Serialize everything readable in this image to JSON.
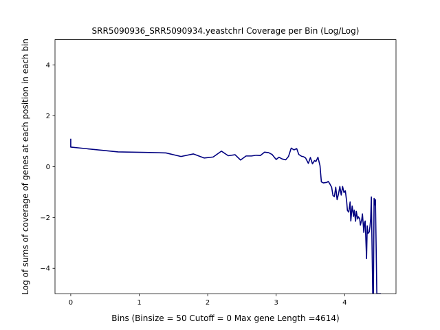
{
  "chart_data": {
    "type": "line",
    "title": "SRR5090936_SRR5090934.yeastchrI Coverage per Bin (Log/Log)",
    "xlabel": "Bins  (Binsize = 50 Cutoff = 0 Max gene Length =4614)",
    "ylabel": "Log of sums of coverage of genes at each position in each bin",
    "xlim": [
      -0.23,
      4.75
    ],
    "ylim": [
      -5,
      5
    ],
    "xticks": [
      0,
      1,
      2,
      3,
      4
    ],
    "yticks": [
      -4,
      -2,
      0,
      2,
      4
    ],
    "grid": false,
    "line_color": "#000080",
    "series": [
      {
        "x": [
          0,
          0,
          0.69,
          1.1,
          1.39,
          1.61,
          1.79,
          1.95,
          2.08,
          2.2,
          2.3,
          2.4,
          2.48,
          2.56,
          2.64,
          2.71,
          2.77,
          2.83,
          2.89,
          2.94,
          3.0,
          3.04,
          3.09,
          3.14,
          3.18,
          3.22,
          3.26,
          3.3,
          3.33,
          3.37,
          3.4,
          3.43,
          3.47,
          3.5,
          3.53,
          3.56,
          3.58,
          3.61,
          3.64,
          3.66,
          3.69,
          3.71,
          3.74,
          3.76,
          3.78,
          3.81,
          3.83,
          3.85,
          3.87,
          3.89,
          3.91,
          3.93,
          3.95,
          3.97,
          3.99,
          4.01,
          4.03,
          4.04,
          4.06,
          4.08,
          4.09,
          4.11,
          4.13,
          4.14,
          4.16,
          4.17,
          4.19,
          4.2,
          4.22,
          4.23,
          4.25,
          4.26,
          4.28,
          4.29,
          4.3,
          4.32,
          4.33,
          4.34,
          4.36,
          4.37,
          4.38,
          4.39,
          4.41,
          4.42,
          4.43,
          4.44,
          4.45,
          4.47,
          4.48,
          4.49,
          4.5,
          4.51,
          4.52,
          4.53
        ],
        "values": [
          1.1,
          0.77,
          0.58,
          0.56,
          0.54,
          0.4,
          0.5,
          0.34,
          0.38,
          0.61,
          0.43,
          0.47,
          0.26,
          0.42,
          0.42,
          0.45,
          0.44,
          0.57,
          0.55,
          0.48,
          0.28,
          0.37,
          0.3,
          0.27,
          0.4,
          0.73,
          0.66,
          0.71,
          0.48,
          0.41,
          0.39,
          0.34,
          0.13,
          0.36,
          0.11,
          0.24,
          0.2,
          0.37,
          0.04,
          -0.6,
          -0.64,
          -0.63,
          -0.62,
          -0.58,
          -0.66,
          -0.81,
          -1.14,
          -1.18,
          -0.81,
          -1.3,
          -1.08,
          -0.78,
          -1.12,
          -0.78,
          -1.02,
          -0.95,
          -1.38,
          -1.72,
          -1.79,
          -1.39,
          -2.14,
          -1.55,
          -1.96,
          -1.71,
          -2.15,
          -1.76,
          -2.06,
          -1.97,
          -2.05,
          -2.3,
          -2.07,
          -1.86,
          -2.59,
          -2.21,
          -2.14,
          -3.62,
          -2.33,
          -2.63,
          -2.57,
          -2.35,
          -2.06,
          -1.19,
          -5.0,
          -5.0,
          -1.25,
          -1.5,
          -1.3,
          -5.0,
          -5.0,
          -5.0,
          -5.0,
          -5.0,
          -5.0,
          -5.0
        ]
      }
    ]
  }
}
